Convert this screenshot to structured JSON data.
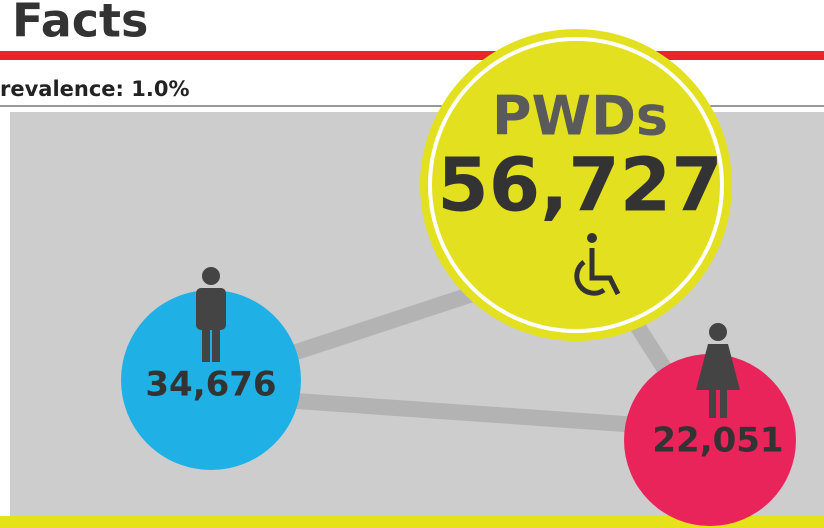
{
  "header": {
    "title": "Facts",
    "subtitle": "revalence: 1.0%"
  },
  "total": {
    "label": "PWDs",
    "value": "56,727"
  },
  "male": {
    "value": "34,676"
  },
  "female": {
    "value": "22,051"
  }
}
